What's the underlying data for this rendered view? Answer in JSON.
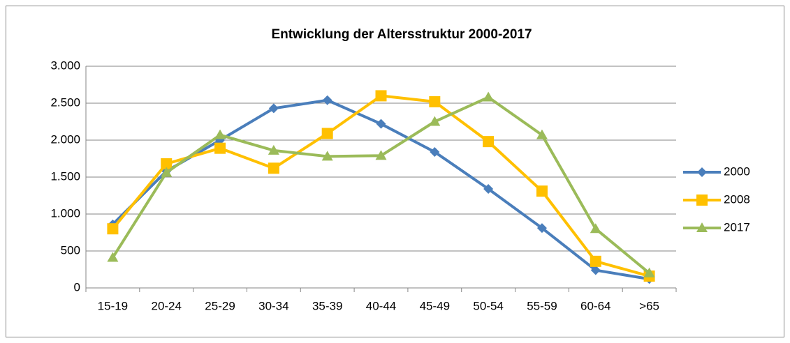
{
  "chart_data": {
    "type": "line",
    "title": "Entwicklung der Altersstruktur 2000-2017",
    "categories": [
      "15-19",
      "20-24",
      "25-29",
      "30-34",
      "35-39",
      "40-44",
      "45-49",
      "50-54",
      "55-59",
      "60-64",
      ">65"
    ],
    "series": [
      {
        "name": "2000",
        "color": "#4a7ebb",
        "marker": "diamond",
        "values": [
          860,
          1580,
          2000,
          2430,
          2540,
          2220,
          1840,
          1340,
          810,
          240,
          120
        ]
      },
      {
        "name": "2008",
        "color": "#ffc000",
        "marker": "square",
        "values": [
          800,
          1680,
          1890,
          1620,
          2090,
          2600,
          2520,
          1980,
          1310,
          360,
          160
        ]
      },
      {
        "name": "2017",
        "color": "#9bbb59",
        "marker": "triangle",
        "values": [
          410,
          1560,
          2070,
          1860,
          1780,
          1790,
          2250,
          2580,
          2070,
          800,
          200
        ]
      }
    ],
    "ylim": [
      0,
      3000
    ],
    "yticks": [
      0,
      500,
      {
        "value": 1000,
        "label": "1.000"
      },
      {
        "value": 1500,
        "label": "1.500"
      },
      {
        "value": 2000,
        "label": "2.000"
      },
      {
        "value": 2500,
        "label": "2.500"
      },
      {
        "value": 3000,
        "label": "3.000"
      }
    ],
    "grid": true,
    "legend": "right"
  }
}
